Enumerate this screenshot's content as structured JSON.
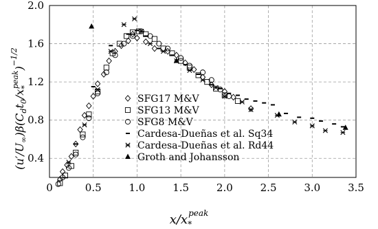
{
  "chart_data": {
    "type": "scatter",
    "xlabel_base": "x/x",
    "xlabel_sub": "*",
    "xlabel_sup": "peak",
    "ylabel": "(u′/U∞)β(C_d t_0/x_*^peak)^−1/2",
    "ylabel_main": "(u′/U",
    "ylabel_inf": "∞",
    "ylabel_mid": ")β(C",
    "ylabel_d": "d",
    "ylabel_t": "t",
    "ylabel_zero": "0",
    "ylabel_slash": "/x",
    "ylabel_star": "*",
    "ylabel_peak": "peak",
    "ylabel_close": ")",
    "ylabel_exp": "−1/2",
    "xlim": [
      0,
      3.5
    ],
    "ylim": [
      0.2,
      2.0
    ],
    "xticks": [
      "0",
      "0.5",
      "1.0",
      "1.5",
      "2.0",
      "2.5",
      "3.0",
      "3.5"
    ],
    "yticks": [
      "0.4",
      "0.8",
      "1.2",
      "1.6",
      "2.0"
    ],
    "xtick_values": [
      0,
      0.5,
      1.0,
      1.5,
      2.0,
      2.5,
      3.0,
      3.5
    ],
    "ytick_values": [
      0.4,
      0.8,
      1.2,
      1.6,
      2.0
    ],
    "grid": true,
    "legend_position": "bottom-center",
    "series": [
      {
        "name": "SFG17 M&V",
        "marker": "diamond",
        "points": [
          [
            0.12,
            0.18
          ],
          [
            0.15,
            0.26
          ],
          [
            0.2,
            0.33
          ],
          [
            0.25,
            0.42
          ],
          [
            0.3,
            0.55
          ],
          [
            0.35,
            0.7
          ],
          [
            0.4,
            0.85
          ],
          [
            0.45,
            0.95
          ],
          [
            0.5,
            1.05
          ],
          [
            0.55,
            1.18
          ],
          [
            0.62,
            1.28
          ],
          [
            0.68,
            1.42
          ],
          [
            0.75,
            1.52
          ],
          [
            0.82,
            1.58
          ],
          [
            0.9,
            1.63
          ],
          [
            0.95,
            1.7
          ],
          [
            1.0,
            1.66
          ],
          [
            1.1,
            1.62
          ],
          [
            1.2,
            1.55
          ],
          [
            1.35,
            1.52
          ],
          [
            1.45,
            1.48
          ],
          [
            1.55,
            1.4
          ],
          [
            1.65,
            1.33
          ],
          [
            1.75,
            1.25
          ],
          [
            1.85,
            1.17
          ],
          [
            2.0,
            1.1
          ],
          [
            2.1,
            1.04
          ],
          [
            2.3,
            0.92
          ]
        ]
      },
      {
        "name": "SFG13 M&V",
        "marker": "square",
        "points": [
          [
            0.12,
            0.14
          ],
          [
            0.18,
            0.22
          ],
          [
            0.25,
            0.32
          ],
          [
            0.3,
            0.46
          ],
          [
            0.38,
            0.65
          ],
          [
            0.45,
            0.86
          ],
          [
            0.55,
            1.1
          ],
          [
            0.65,
            1.35
          ],
          [
            0.72,
            1.5
          ],
          [
            0.8,
            1.6
          ],
          [
            0.88,
            1.68
          ],
          [
            0.95,
            1.72
          ],
          [
            1.02,
            1.73
          ],
          [
            1.1,
            1.7
          ],
          [
            1.2,
            1.65
          ],
          [
            1.3,
            1.55
          ],
          [
            1.4,
            1.5
          ],
          [
            1.5,
            1.42
          ],
          [
            1.6,
            1.35
          ],
          [
            1.7,
            1.27
          ],
          [
            1.8,
            1.2
          ],
          [
            1.9,
            1.13
          ],
          [
            2.0,
            1.06
          ],
          [
            2.15,
            1.0
          ]
        ]
      },
      {
        "name": "SFG8 M&V",
        "marker": "circle",
        "points": [
          [
            0.1,
            0.13
          ],
          [
            0.15,
            0.2
          ],
          [
            0.22,
            0.3
          ],
          [
            0.3,
            0.44
          ],
          [
            0.38,
            0.62
          ],
          [
            0.45,
            0.82
          ],
          [
            0.55,
            1.08
          ],
          [
            0.65,
            1.3
          ],
          [
            0.75,
            1.48
          ],
          [
            0.85,
            1.6
          ],
          [
            0.95,
            1.68
          ],
          [
            1.05,
            1.73
          ],
          [
            1.15,
            1.68
          ],
          [
            1.25,
            1.6
          ],
          [
            1.35,
            1.55
          ],
          [
            1.5,
            1.45
          ],
          [
            1.6,
            1.37
          ],
          [
            1.75,
            1.3
          ],
          [
            1.85,
            1.22
          ],
          [
            1.95,
            1.12
          ],
          [
            2.05,
            1.05
          ]
        ]
      },
      {
        "name": "Cardesa-Dueñas et al. Sq34",
        "marker": "dash",
        "points": [
          [
            0.3,
            0.55
          ],
          [
            0.5,
            1.15
          ],
          [
            0.7,
            1.58
          ],
          [
            0.9,
            1.7
          ],
          [
            1.0,
            1.74
          ],
          [
            1.1,
            1.68
          ],
          [
            1.25,
            1.55
          ],
          [
            1.4,
            1.48
          ],
          [
            1.55,
            1.38
          ],
          [
            1.7,
            1.28
          ],
          [
            1.85,
            1.17
          ],
          [
            1.95,
            1.13
          ],
          [
            2.05,
            1.08
          ],
          [
            2.15,
            1.06
          ],
          [
            2.25,
            1.02
          ],
          [
            2.35,
            1.0
          ],
          [
            2.45,
            0.98
          ],
          [
            2.55,
            0.96
          ],
          [
            2.7,
            0.87
          ],
          [
            2.85,
            0.83
          ],
          [
            3.0,
            0.82
          ],
          [
            3.1,
            0.79
          ],
          [
            3.25,
            0.76
          ],
          [
            3.35,
            0.73
          ]
        ]
      },
      {
        "name": "Cardesa-Dueñas et al. Rd44",
        "marker": "star",
        "points": [
          [
            0.22,
            0.36
          ],
          [
            0.4,
            0.75
          ],
          [
            0.55,
            1.12
          ],
          [
            0.7,
            1.52
          ],
          [
            0.85,
            1.8
          ],
          [
            0.97,
            1.86
          ],
          [
            1.05,
            1.73
          ],
          [
            1.15,
            1.6
          ],
          [
            1.3,
            1.52
          ],
          [
            1.45,
            1.42
          ],
          [
            1.6,
            1.32
          ],
          [
            1.75,
            1.22
          ],
          [
            1.9,
            1.14
          ],
          [
            2.0,
            1.05
          ],
          [
            2.2,
            0.99
          ],
          [
            2.3,
            0.91
          ],
          [
            2.6,
            0.85
          ],
          [
            2.8,
            0.78
          ],
          [
            3.0,
            0.74
          ],
          [
            3.15,
            0.69
          ],
          [
            3.35,
            0.67
          ]
        ]
      },
      {
        "name": "Groth and Johansson",
        "marker": "triangle",
        "points": [
          [
            0.48,
            1.78
          ],
          [
            1.45,
            1.42
          ],
          [
            2.62,
            0.86
          ],
          [
            3.38,
            0.72
          ]
        ]
      }
    ]
  }
}
